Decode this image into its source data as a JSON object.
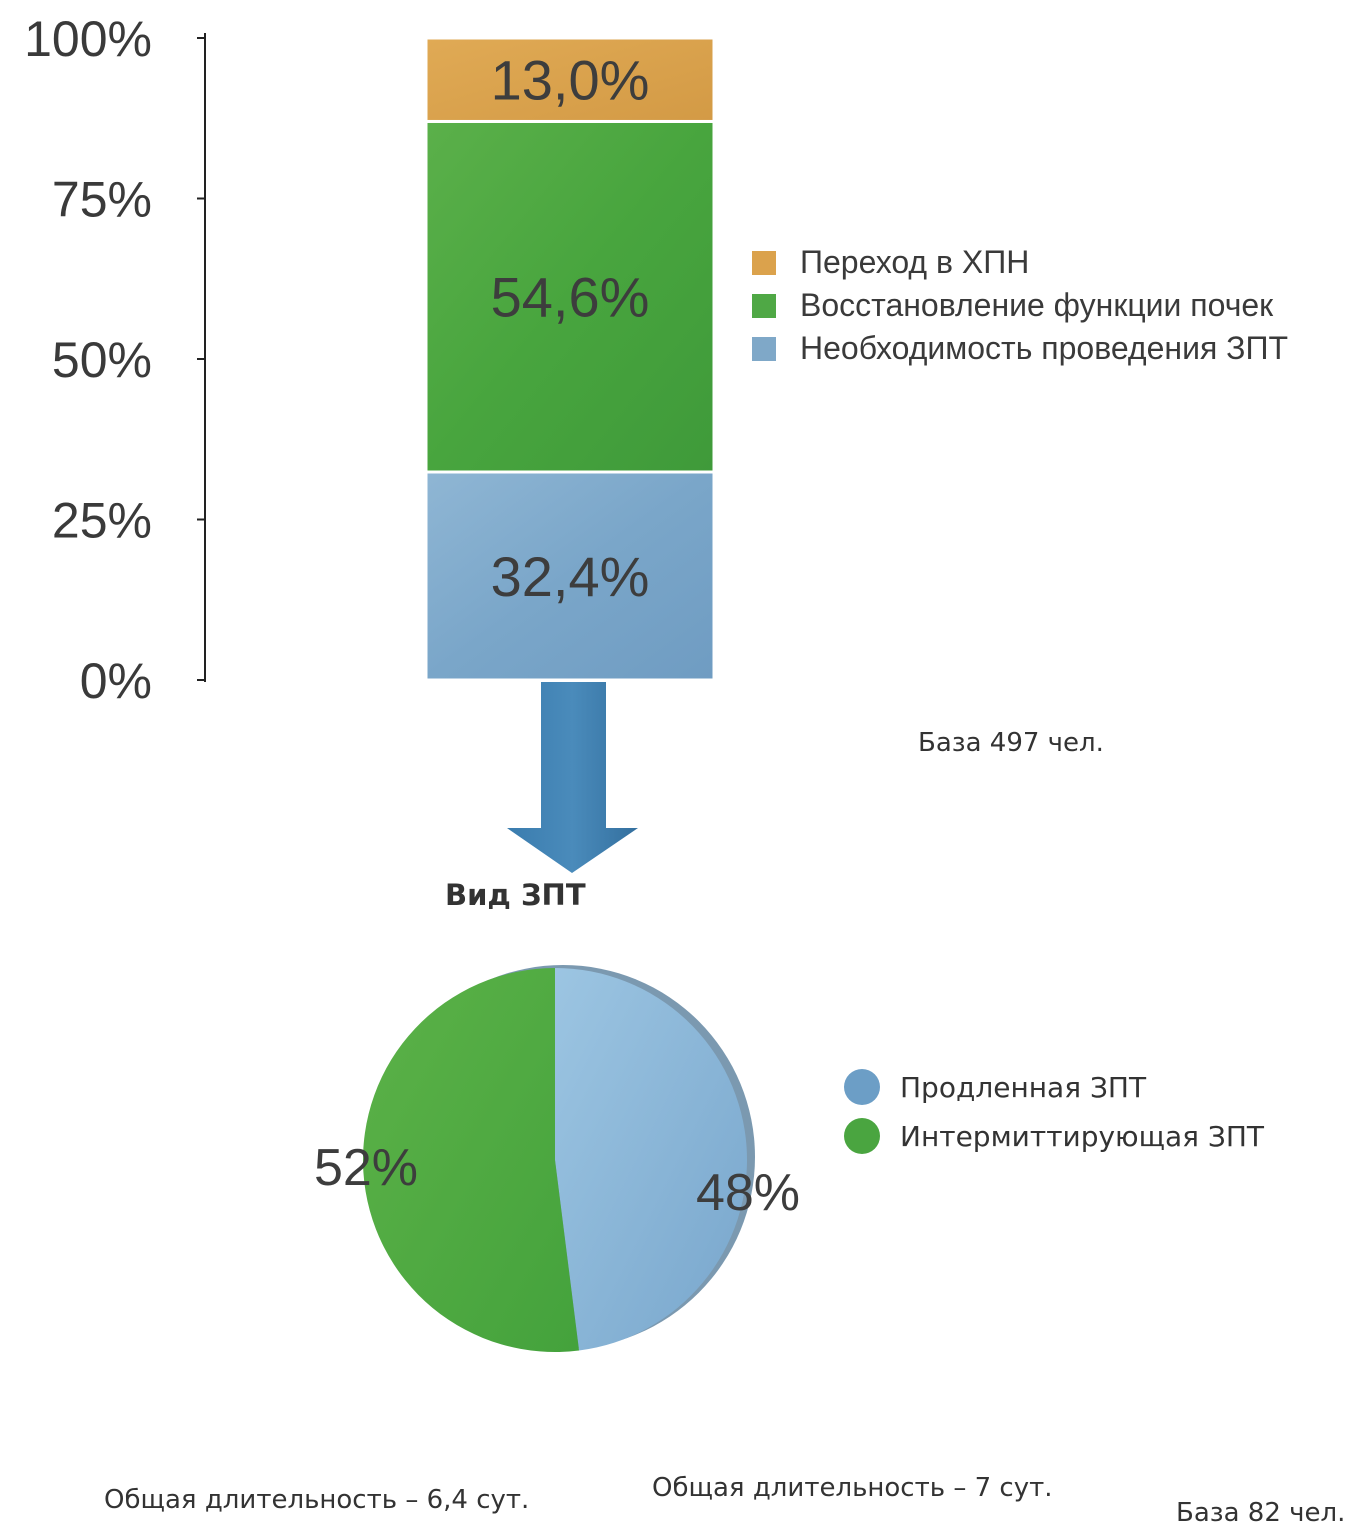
{
  "chart_data": [
    {
      "type": "bar",
      "stacked": true,
      "categories": [
        ""
      ],
      "y_ticks": [
        "0%",
        "25%",
        "50%",
        "75%",
        "100%"
      ],
      "ylim": [
        0,
        100
      ],
      "series": [
        {
          "name": "Необходимость проведения ЗПТ",
          "values": [
            32.4
          ],
          "label": "32,4%",
          "color": "#7fa8c8"
        },
        {
          "name": "Восстановление функции почек",
          "values": [
            54.6
          ],
          "label": "54,6%",
          "color": "#4fa845"
        },
        {
          "name": "Переход в ХПН",
          "values": [
            13.0
          ],
          "label": "13,0%",
          "color": "#dba24c"
        }
      ],
      "legend": [
        {
          "label": "Переход в ХПН",
          "color": "#dba24c"
        },
        {
          "label": "Восстановление функции почек",
          "color": "#4fa845"
        },
        {
          "label": "Необходимость проведения ЗПТ",
          "color": "#7fa8c8"
        }
      ],
      "legend_position": "right",
      "note": "База 497 чел."
    },
    {
      "type": "pie",
      "title": "Вид ЗПТ",
      "slices": [
        {
          "name": "Продленная ЗПТ",
          "value": 48,
          "label": "48%",
          "color": "#86b4d6"
        },
        {
          "name": "Интермиттирующая ЗПТ",
          "value": 52,
          "label": "52%",
          "color": "#54ab3f"
        }
      ],
      "legend": [
        {
          "label": "Продленная ЗПТ",
          "color": "#6c9ec6"
        },
        {
          "label": "Интермиттирующая ЗПТ",
          "color": "#4aa540"
        }
      ],
      "legend_position": "right",
      "notes": [
        "Общая длительность – 6,4 сут.",
        "Общая длительность – 7 сут."
      ],
      "base": "База 82 чел."
    }
  ],
  "arrow_color": "#3a78a8"
}
